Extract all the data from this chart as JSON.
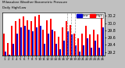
{
  "title": "Milwaukee Weather Barometric Pressure",
  "subtitle": "Daily High/Low",
  "bar_highs": [
    29.72,
    29.45,
    29.92,
    30.05,
    30.12,
    30.18,
    30.08,
    30.05,
    30.18,
    30.22,
    29.82,
    30.08,
    30.12,
    29.78,
    29.62,
    29.88,
    30.05,
    29.95,
    29.72,
    29.58,
    29.72,
    29.92,
    29.68,
    29.82,
    29.68,
    30.18
  ],
  "bar_lows": [
    29.22,
    29.12,
    29.42,
    29.72,
    29.88,
    29.92,
    29.82,
    29.78,
    29.88,
    29.92,
    29.42,
    29.72,
    29.82,
    29.42,
    29.28,
    29.52,
    29.78,
    29.68,
    29.38,
    29.22,
    29.38,
    29.58,
    29.32,
    29.52,
    29.32,
    29.88
  ],
  "color_high": "#ff0000",
  "color_low": "#0000cc",
  "ylim_min": 29.1,
  "ylim_max": 30.3,
  "yticks": [
    29.2,
    29.4,
    29.6,
    29.8,
    30.0,
    30.2
  ],
  "ytick_labels": [
    "29.2",
    "29.4",
    "29.6",
    "29.8",
    "30.0",
    "30.2"
  ],
  "bg_color": "#c0c0c0",
  "plot_bg": "#ffffff",
  "title_color": "#000000",
  "legend_high_label": "High",
  "legend_low_label": "Low",
  "days": [
    "1",
    "2",
    "3",
    "4",
    "5",
    "6",
    "7",
    "8",
    "9",
    "10",
    "11",
    "12",
    "13",
    "14",
    "15",
    "16",
    "17",
    "18",
    "19",
    "20",
    "21",
    "22",
    "23",
    "24",
    "25",
    "26"
  ],
  "dashed_lines": [
    16,
    17,
    18
  ]
}
